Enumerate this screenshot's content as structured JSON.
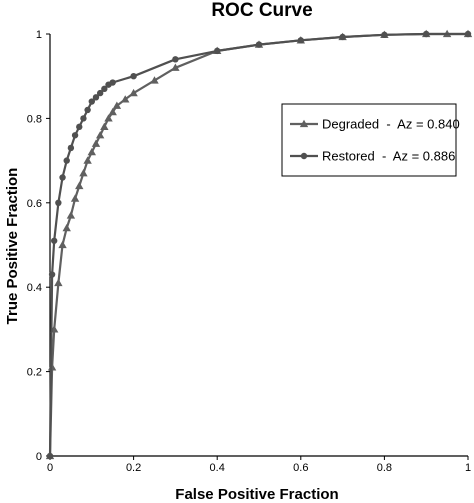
{
  "chart_data": {
    "type": "line",
    "title": "ROC Curve",
    "xlabel": "False Positive Fraction",
    "ylabel": "True Positive Fraction",
    "xlim": [
      0,
      1
    ],
    "ylim": [
      0,
      1
    ],
    "x_ticks": [
      "0",
      "0.2",
      "0.4",
      "0.6",
      "0.8",
      "1"
    ],
    "y_ticks": [
      "0",
      "0.2",
      "0.4",
      "0.6",
      "0.8",
      "1"
    ],
    "grid": false,
    "legend_position": "right",
    "series": [
      {
        "name": "Degraded  -  Az = 0.840",
        "marker": "triangle",
        "color": "#606060",
        "points": [
          [
            0,
            0
          ],
          [
            0.005,
            0.21
          ],
          [
            0.01,
            0.3
          ],
          [
            0.02,
            0.41
          ],
          [
            0.03,
            0.5
          ],
          [
            0.04,
            0.54
          ],
          [
            0.05,
            0.57
          ],
          [
            0.06,
            0.61
          ],
          [
            0.07,
            0.64
          ],
          [
            0.08,
            0.67
          ],
          [
            0.09,
            0.7
          ],
          [
            0.1,
            0.72
          ],
          [
            0.11,
            0.74
          ],
          [
            0.12,
            0.76
          ],
          [
            0.13,
            0.78
          ],
          [
            0.14,
            0.8
          ],
          [
            0.15,
            0.815
          ],
          [
            0.16,
            0.83
          ],
          [
            0.18,
            0.845
          ],
          [
            0.2,
            0.86
          ],
          [
            0.25,
            0.89
          ],
          [
            0.3,
            0.92
          ],
          [
            0.4,
            0.96
          ],
          [
            0.5,
            0.975
          ],
          [
            0.6,
            0.985
          ],
          [
            0.7,
            0.993
          ],
          [
            0.8,
            0.998
          ],
          [
            0.9,
            1.0
          ],
          [
            0.95,
            1.0
          ],
          [
            1.0,
            1.0
          ]
        ]
      },
      {
        "name": "Restored  -  Az = 0.886",
        "marker": "circle",
        "color": "#505050",
        "points": [
          [
            0,
            0
          ],
          [
            0.005,
            0.43
          ],
          [
            0.01,
            0.51
          ],
          [
            0.02,
            0.6
          ],
          [
            0.03,
            0.66
          ],
          [
            0.04,
            0.7
          ],
          [
            0.05,
            0.73
          ],
          [
            0.06,
            0.76
          ],
          [
            0.07,
            0.78
          ],
          [
            0.08,
            0.8
          ],
          [
            0.09,
            0.82
          ],
          [
            0.1,
            0.84
          ],
          [
            0.11,
            0.85
          ],
          [
            0.12,
            0.86
          ],
          [
            0.13,
            0.87
          ],
          [
            0.14,
            0.88
          ],
          [
            0.15,
            0.885
          ],
          [
            0.2,
            0.9
          ],
          [
            0.3,
            0.94
          ],
          [
            0.4,
            0.96
          ],
          [
            0.5,
            0.975
          ],
          [
            0.6,
            0.985
          ],
          [
            0.7,
            0.993
          ],
          [
            0.8,
            0.998
          ],
          [
            0.9,
            1.0
          ],
          [
            1.0,
            1.0
          ]
        ]
      }
    ]
  }
}
